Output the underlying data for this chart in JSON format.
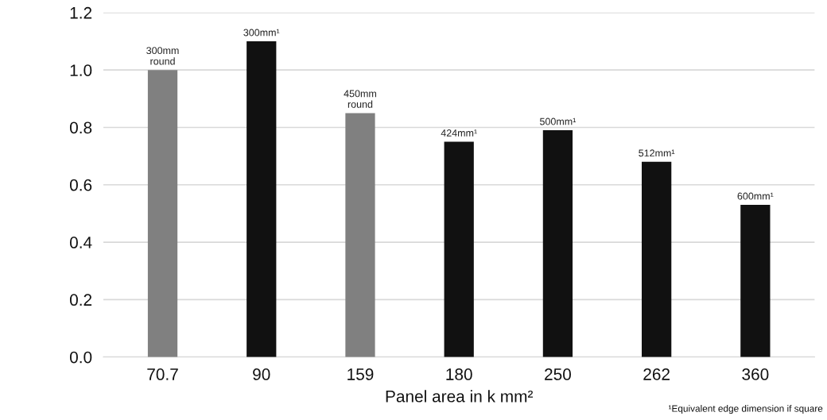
{
  "chart_data": {
    "type": "bar",
    "xlabel": "Panel area in k mm²",
    "categories": [
      "70.7",
      "90",
      "159",
      "180",
      "250",
      "262",
      "360"
    ],
    "values": [
      1.0,
      1.1,
      0.85,
      0.75,
      0.79,
      0.68,
      0.53
    ],
    "colors": [
      "#808080",
      "#111111",
      "#808080",
      "#111111",
      "#111111",
      "#111111",
      "#111111"
    ],
    "ylim": [
      0,
      1.2
    ],
    "yticks": [
      {
        "value": 0,
        "label": "0.0"
      },
      {
        "value": 0.2,
        "label": "0.2"
      },
      {
        "value": 0.4,
        "label": "0.4"
      },
      {
        "value": 0.6,
        "label": "0.6"
      },
      {
        "value": 0.8,
        "label": "0.8"
      },
      {
        "value": 1.0,
        "label": "1.0"
      },
      {
        "value": 1.2,
        "label": "1.2"
      }
    ],
    "grid": "y",
    "annotations": [
      {
        "text": "300mm\nround",
        "x": "70.7",
        "y": 1.0
      },
      {
        "text": "300mm¹",
        "x": "90",
        "y": 1.1
      },
      {
        "text": "450mm\nround",
        "x": "159",
        "y": 0.85
      },
      {
        "text": "424mm¹",
        "x": "180",
        "y": 0.75
      },
      {
        "text": "500mm¹",
        "x": "250",
        "y": 0.79
      },
      {
        "text": "512mm¹",
        "x": "262",
        "y": 0.68
      },
      {
        "text": "600mm¹",
        "x": "360",
        "y": 0.53
      },
      "¹Equivalent edge dimension if square"
    ]
  }
}
